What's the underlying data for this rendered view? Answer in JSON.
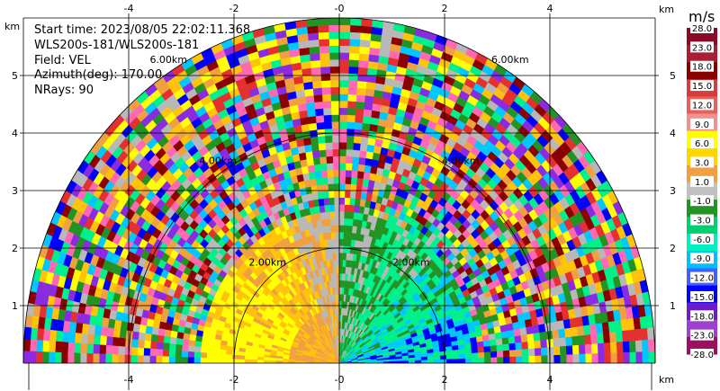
{
  "info": {
    "start_time": "Start time: 2023/08/05 22:02:11.368",
    "instrument": "WLS200s-181/WLS200s-181",
    "field": "Field: VEL",
    "azimuth": "Azimuth(deg): 170.00",
    "nrays": "NRays: 90"
  },
  "colors": {
    "yellow": "#ffff00",
    "gold": "#ffc30a",
    "orange": "#f0a040",
    "grey": "#b8b8b8",
    "green": "#239323",
    "mint": "#00f08c",
    "cyan": "#00c8ff",
    "blue": "#0000ff",
    "purple": "#8a2be2",
    "red": "#e53030",
    "darkred": "#8b0000"
  },
  "chart_data": {
    "type": "heatmap",
    "title": "",
    "subtitle": "",
    "xlabel": "km",
    "ylabel": "km",
    "xlim": [
      -6,
      6
    ],
    "ylim": [
      0,
      6
    ],
    "x_ticks": [
      "-4",
      "-2",
      "-0",
      "2",
      "4"
    ],
    "x_tick_values": [
      -4,
      -2,
      0,
      2,
      4
    ],
    "y_ticks": [
      "1",
      "2",
      "3",
      "4",
      "5"
    ],
    "y_tick_values": [
      1,
      2,
      3,
      4,
      5
    ],
    "range_rings": [
      {
        "label": "2.00km",
        "radius": 2
      },
      {
        "label": "4.00km",
        "radius": 4
      },
      {
        "label": "6.00km",
        "radius": 6
      }
    ],
    "grid": true,
    "colorbar": {
      "unit": "m/s",
      "labels": [
        "28.0",
        "23.0",
        "18.0",
        "15.0",
        "12.0",
        "9.0",
        "6.0",
        "3.0",
        "1.0",
        "-1.0",
        "-3.0",
        "-6.0",
        "-9.0",
        "-12.0",
        "-15.0",
        "-18.0",
        "-23.0",
        "-28.0"
      ],
      "colors": [
        "#8b0a2a",
        "#a81e34",
        "#8b0000",
        "#d83c3c",
        "#e8605a",
        "#f09090",
        "#ffff00",
        "#ffd700",
        "#f0a040",
        "#c0c0c0",
        "#239323",
        "#00d070",
        "#00f0c0",
        "#00bfff",
        "#3f5fff",
        "#0000ff",
        "#6a1cc8",
        "#a040d0",
        "#9b1060"
      ]
    }
  }
}
